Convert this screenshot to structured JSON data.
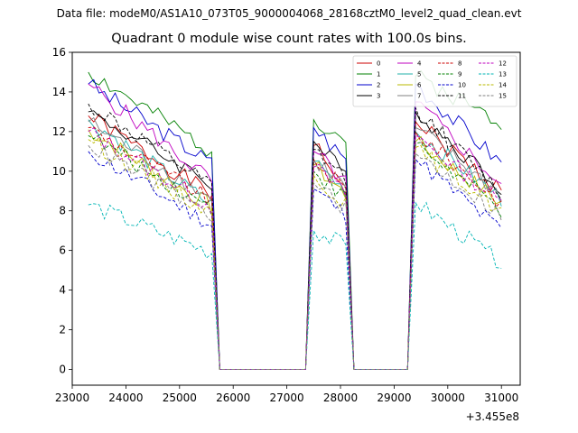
{
  "chart_data": {
    "type": "line",
    "supertitle": "Data file: modeM0/AS1A10_073T05_9000004068_28168cztM0_level2_quad_clean.evt",
    "title": "Quadrant 0 module wise count rates with 100.0s bins.",
    "xlabel": "",
    "ylabel": "",
    "x_offset_label": "+3.455e8",
    "xlim": [
      23000,
      31350
    ],
    "ylim": [
      -0.8,
      16
    ],
    "x_ticks": [
      23000,
      24000,
      25000,
      26000,
      27000,
      28000,
      29000,
      30000,
      31000
    ],
    "x_tick_labels": [
      "23000",
      "24000",
      "25000",
      "26000",
      "27000",
      "28000",
      "29000",
      "30000",
      "31000"
    ],
    "y_ticks": [
      0,
      2,
      4,
      6,
      8,
      10,
      12,
      14,
      16
    ],
    "y_tick_labels": [
      "0",
      "2",
      "4",
      "6",
      "8",
      "10",
      "12",
      "14",
      "16"
    ],
    "legend_position": "top-right",
    "segments": [
      {
        "start": 23300,
        "end": 25600
      },
      {
        "start": 27500,
        "end": 28100
      },
      {
        "start": 29400,
        "end": 31000
      }
    ],
    "series": [
      {
        "name": "0",
        "color": "#cc0000",
        "dash": "solid",
        "levels": [
          12.8,
          8.8,
          11.3,
          9.1,
          12.5,
          9.0
        ]
      },
      {
        "name": "1",
        "color": "#008000",
        "dash": "solid",
        "levels": [
          15.0,
          11.0,
          12.6,
          11.6,
          14.8,
          12.5
        ]
      },
      {
        "name": "2",
        "color": "#0000cc",
        "dash": "solid",
        "levels": [
          14.4,
          10.4,
          12.2,
          10.6,
          14.4,
          10.4
        ]
      },
      {
        "name": "3",
        "color": "#000000",
        "dash": "solid",
        "levels": [
          13.0,
          9.4,
          11.5,
          9.8,
          13.0,
          9.2
        ]
      },
      {
        "name": "4",
        "color": "#bf00bf",
        "dash": "solid",
        "levels": [
          14.4,
          9.5,
          11.0,
          9.4,
          13.5,
          9.3
        ]
      },
      {
        "name": "5",
        "color": "#20b2aa",
        "dash": "solid",
        "levels": [
          12.6,
          8.3,
          10.5,
          9.0,
          12.0,
          8.6
        ]
      },
      {
        "name": "6",
        "color": "#b8b800",
        "dash": "solid",
        "levels": [
          12.1,
          8.2,
          10.3,
          8.8,
          11.5,
          8.4
        ]
      },
      {
        "name": "7",
        "color": "#808080",
        "dash": "solid",
        "levels": [
          12.5,
          8.6,
          10.6,
          9.2,
          12.2,
          8.8
        ]
      },
      {
        "name": "8",
        "color": "#cc0000",
        "dash": "dashed",
        "levels": [
          12.2,
          8.5,
          10.6,
          9.0,
          12.0,
          8.4
        ]
      },
      {
        "name": "9",
        "color": "#008000",
        "dash": "dashed",
        "levels": [
          11.8,
          8.1,
          10.0,
          8.6,
          11.4,
          8.0
        ]
      },
      {
        "name": "10",
        "color": "#0000cc",
        "dash": "dashed",
        "levels": [
          11.0,
          7.3,
          9.1,
          7.8,
          10.6,
          7.0
        ]
      },
      {
        "name": "11",
        "color": "#000000",
        "dash": "dashed",
        "levels": [
          13.4,
          9.2,
          11.1,
          9.6,
          13.2,
          8.9
        ]
      },
      {
        "name": "12",
        "color": "#bf00bf",
        "dash": "dashed",
        "levels": [
          12.0,
          8.2,
          10.2,
          8.8,
          11.8,
          8.4
        ]
      },
      {
        "name": "13",
        "color": "#00b5b5",
        "dash": "dashed",
        "levels": [
          8.3,
          5.9,
          7.0,
          6.2,
          8.4,
          5.4
        ]
      },
      {
        "name": "14",
        "color": "#b8b800",
        "dash": "dashed",
        "levels": [
          11.6,
          7.9,
          9.8,
          8.4,
          11.2,
          8.0
        ]
      },
      {
        "name": "15",
        "color": "#808080",
        "dash": "dashed",
        "levels": [
          11.3,
          7.8,
          9.4,
          8.1,
          10.9,
          7.8
        ]
      }
    ]
  }
}
